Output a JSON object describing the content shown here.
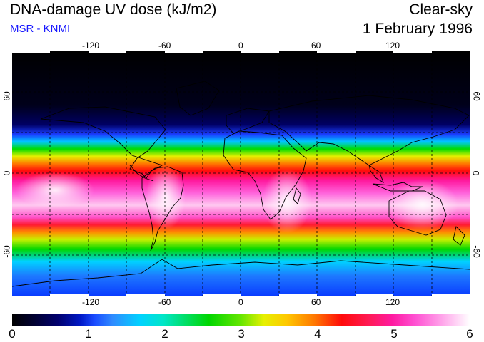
{
  "header": {
    "title": "DNA-damage UV dose (kJ/m2)",
    "subtitle": "MSR - KNMI",
    "condition": "Clear-sky",
    "date": "1 February 1996"
  },
  "map": {
    "lon_ticks": [
      "-120",
      "-60",
      "0",
      "60",
      "120"
    ],
    "lat_ticks": [
      "60",
      "0",
      "-60"
    ],
    "lon_range": [
      -180,
      180
    ],
    "lat_range": [
      -90,
      90
    ],
    "grid": "dashed",
    "projection": "equirectangular"
  },
  "colorbar": {
    "labels": [
      "0",
      "1",
      "2",
      "3",
      "4",
      "5",
      "6"
    ],
    "min": 0,
    "max": 6,
    "colors": [
      "#000000",
      "#0019c8",
      "#00d2ff",
      "#00d600",
      "#ffc800",
      "#ff0a0a",
      "#ff50d2",
      "#ffffff"
    ]
  }
}
